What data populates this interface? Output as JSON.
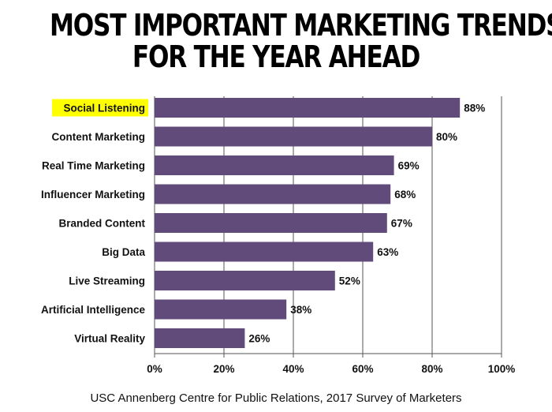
{
  "title_lines": [
    "MOST IMPORTANT MARKETING TRENDS",
    "FOR THE YEAR AHEAD"
  ],
  "source": "USC Annenberg Centre for Public Relations, 2017 Survey of Marketers",
  "colors": {
    "bar": "#614B7A",
    "highlight": "#FFFF00",
    "grid": "#555555",
    "text": "#111111"
  },
  "chart_data": {
    "type": "bar",
    "orientation": "horizontal",
    "title": "MOST IMPORTANT MARKETING TRENDS FOR THE YEAR AHEAD",
    "categories": [
      "Social Listening",
      "Content Marketing",
      "Real Time Marketing",
      "Influencer Marketing",
      "Branded Content",
      "Big Data",
      "Live Streaming",
      "Artificial Intelligence",
      "Virtual Reality"
    ],
    "values": [
      88,
      80,
      69,
      68,
      67,
      63,
      52,
      38,
      26
    ],
    "value_labels": [
      "88%",
      "80%",
      "69%",
      "68%",
      "67%",
      "63%",
      "52%",
      "38%",
      "26%"
    ],
    "highlighted_category": "Social Listening",
    "xlim": [
      0,
      100
    ],
    "xticks": [
      0,
      20,
      40,
      60,
      80,
      100
    ],
    "xtick_labels": [
      "0%",
      "20%",
      "40%",
      "60%",
      "80%",
      "100%"
    ],
    "xlabel": "",
    "ylabel": "",
    "grid": true,
    "legend": "none"
  }
}
